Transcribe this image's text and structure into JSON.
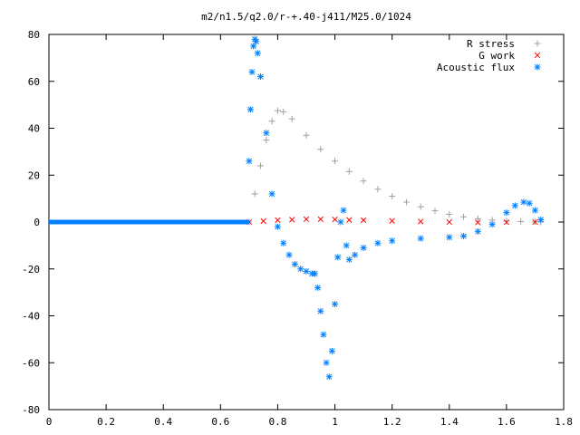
{
  "chart_data": {
    "type": "scatter",
    "title": "m2/n1.5/q2.0/r-+.40-j411/M25.0/1024",
    "xlabel": "",
    "ylabel": "",
    "xlim": [
      0,
      1.8
    ],
    "ylim": [
      -80,
      80
    ],
    "x_ticks": [
      "0",
      "0.2",
      "0.4",
      "0.6",
      "0.8",
      "1",
      "1.2",
      "1.4",
      "1.6",
      "1.8"
    ],
    "y_ticks": [
      "80",
      "60",
      "40",
      "20",
      "0",
      "-20",
      "-40",
      "-60",
      "-80"
    ],
    "grid": false,
    "legend_position": "top-right",
    "series": [
      {
        "name": "R stress",
        "marker": "plus",
        "color": "#a0a0a0",
        "points": [
          [
            0.7,
            0
          ],
          [
            0.72,
            12
          ],
          [
            0.74,
            24
          ],
          [
            0.76,
            35
          ],
          [
            0.78,
            43
          ],
          [
            0.8,
            47.5
          ],
          [
            0.82,
            47
          ],
          [
            0.85,
            44
          ],
          [
            0.9,
            37
          ],
          [
            0.95,
            31
          ],
          [
            1.0,
            26
          ],
          [
            1.05,
            21.5
          ],
          [
            1.1,
            17.5
          ],
          [
            1.15,
            14
          ],
          [
            1.2,
            11
          ],
          [
            1.25,
            8.5
          ],
          [
            1.3,
            6.5
          ],
          [
            1.35,
            4.8
          ],
          [
            1.4,
            3.3
          ],
          [
            1.45,
            2.2
          ],
          [
            1.5,
            1.4
          ],
          [
            1.55,
            0.8
          ],
          [
            1.6,
            0.4
          ],
          [
            1.65,
            0.2
          ],
          [
            1.7,
            0.1
          ],
          [
            1.72,
            0
          ]
        ]
      },
      {
        "name": "G work",
        "marker": "cross",
        "color": "#ff0000",
        "points": [
          [
            0.7,
            0
          ],
          [
            0.75,
            0.4
          ],
          [
            0.8,
            0.8
          ],
          [
            0.85,
            1
          ],
          [
            0.9,
            1.2
          ],
          [
            0.95,
            1.2
          ],
          [
            1.0,
            1.1
          ],
          [
            1.05,
            0.9
          ],
          [
            1.1,
            0.8
          ],
          [
            1.2,
            0.5
          ],
          [
            1.3,
            0.2
          ],
          [
            1.4,
            0
          ],
          [
            1.5,
            -0.2
          ],
          [
            1.6,
            -0.1
          ],
          [
            1.7,
            0
          ]
        ]
      },
      {
        "name": "Acoustic flux",
        "marker": "star",
        "color": "#0080ff",
        "points": [
          [
            0.7,
            26
          ],
          [
            0.705,
            48
          ],
          [
            0.71,
            64
          ],
          [
            0.715,
            75
          ],
          [
            0.72,
            78
          ],
          [
            0.725,
            77
          ],
          [
            0.73,
            72
          ],
          [
            0.74,
            62
          ],
          [
            0.76,
            38
          ],
          [
            0.78,
            12
          ],
          [
            0.8,
            -2
          ],
          [
            0.82,
            -9
          ],
          [
            0.84,
            -14
          ],
          [
            0.86,
            -18
          ],
          [
            0.88,
            -20
          ],
          [
            0.9,
            -21
          ],
          [
            0.92,
            -22
          ],
          [
            0.93,
            -22
          ],
          [
            0.94,
            -28
          ],
          [
            0.95,
            -38
          ],
          [
            0.96,
            -48
          ],
          [
            0.97,
            -60
          ],
          [
            0.98,
            -66
          ],
          [
            0.99,
            -55
          ],
          [
            1.0,
            -35
          ],
          [
            1.01,
            -15
          ],
          [
            1.02,
            0
          ],
          [
            1.03,
            5
          ],
          [
            1.04,
            -10
          ],
          [
            1.05,
            -16
          ],
          [
            1.07,
            -14
          ],
          [
            1.1,
            -11
          ],
          [
            1.15,
            -9
          ],
          [
            1.2,
            -8
          ],
          [
            1.3,
            -7
          ],
          [
            1.4,
            -6.5
          ],
          [
            1.45,
            -6
          ],
          [
            1.5,
            -4
          ],
          [
            1.55,
            -1
          ],
          [
            1.6,
            4
          ],
          [
            1.63,
            7
          ],
          [
            1.66,
            8.5
          ],
          [
            1.68,
            8
          ],
          [
            1.7,
            5
          ],
          [
            1.72,
            1
          ]
        ],
        "baseline_segment": [
          [
            0,
            0
          ],
          [
            0.7,
            0
          ]
        ]
      }
    ]
  }
}
